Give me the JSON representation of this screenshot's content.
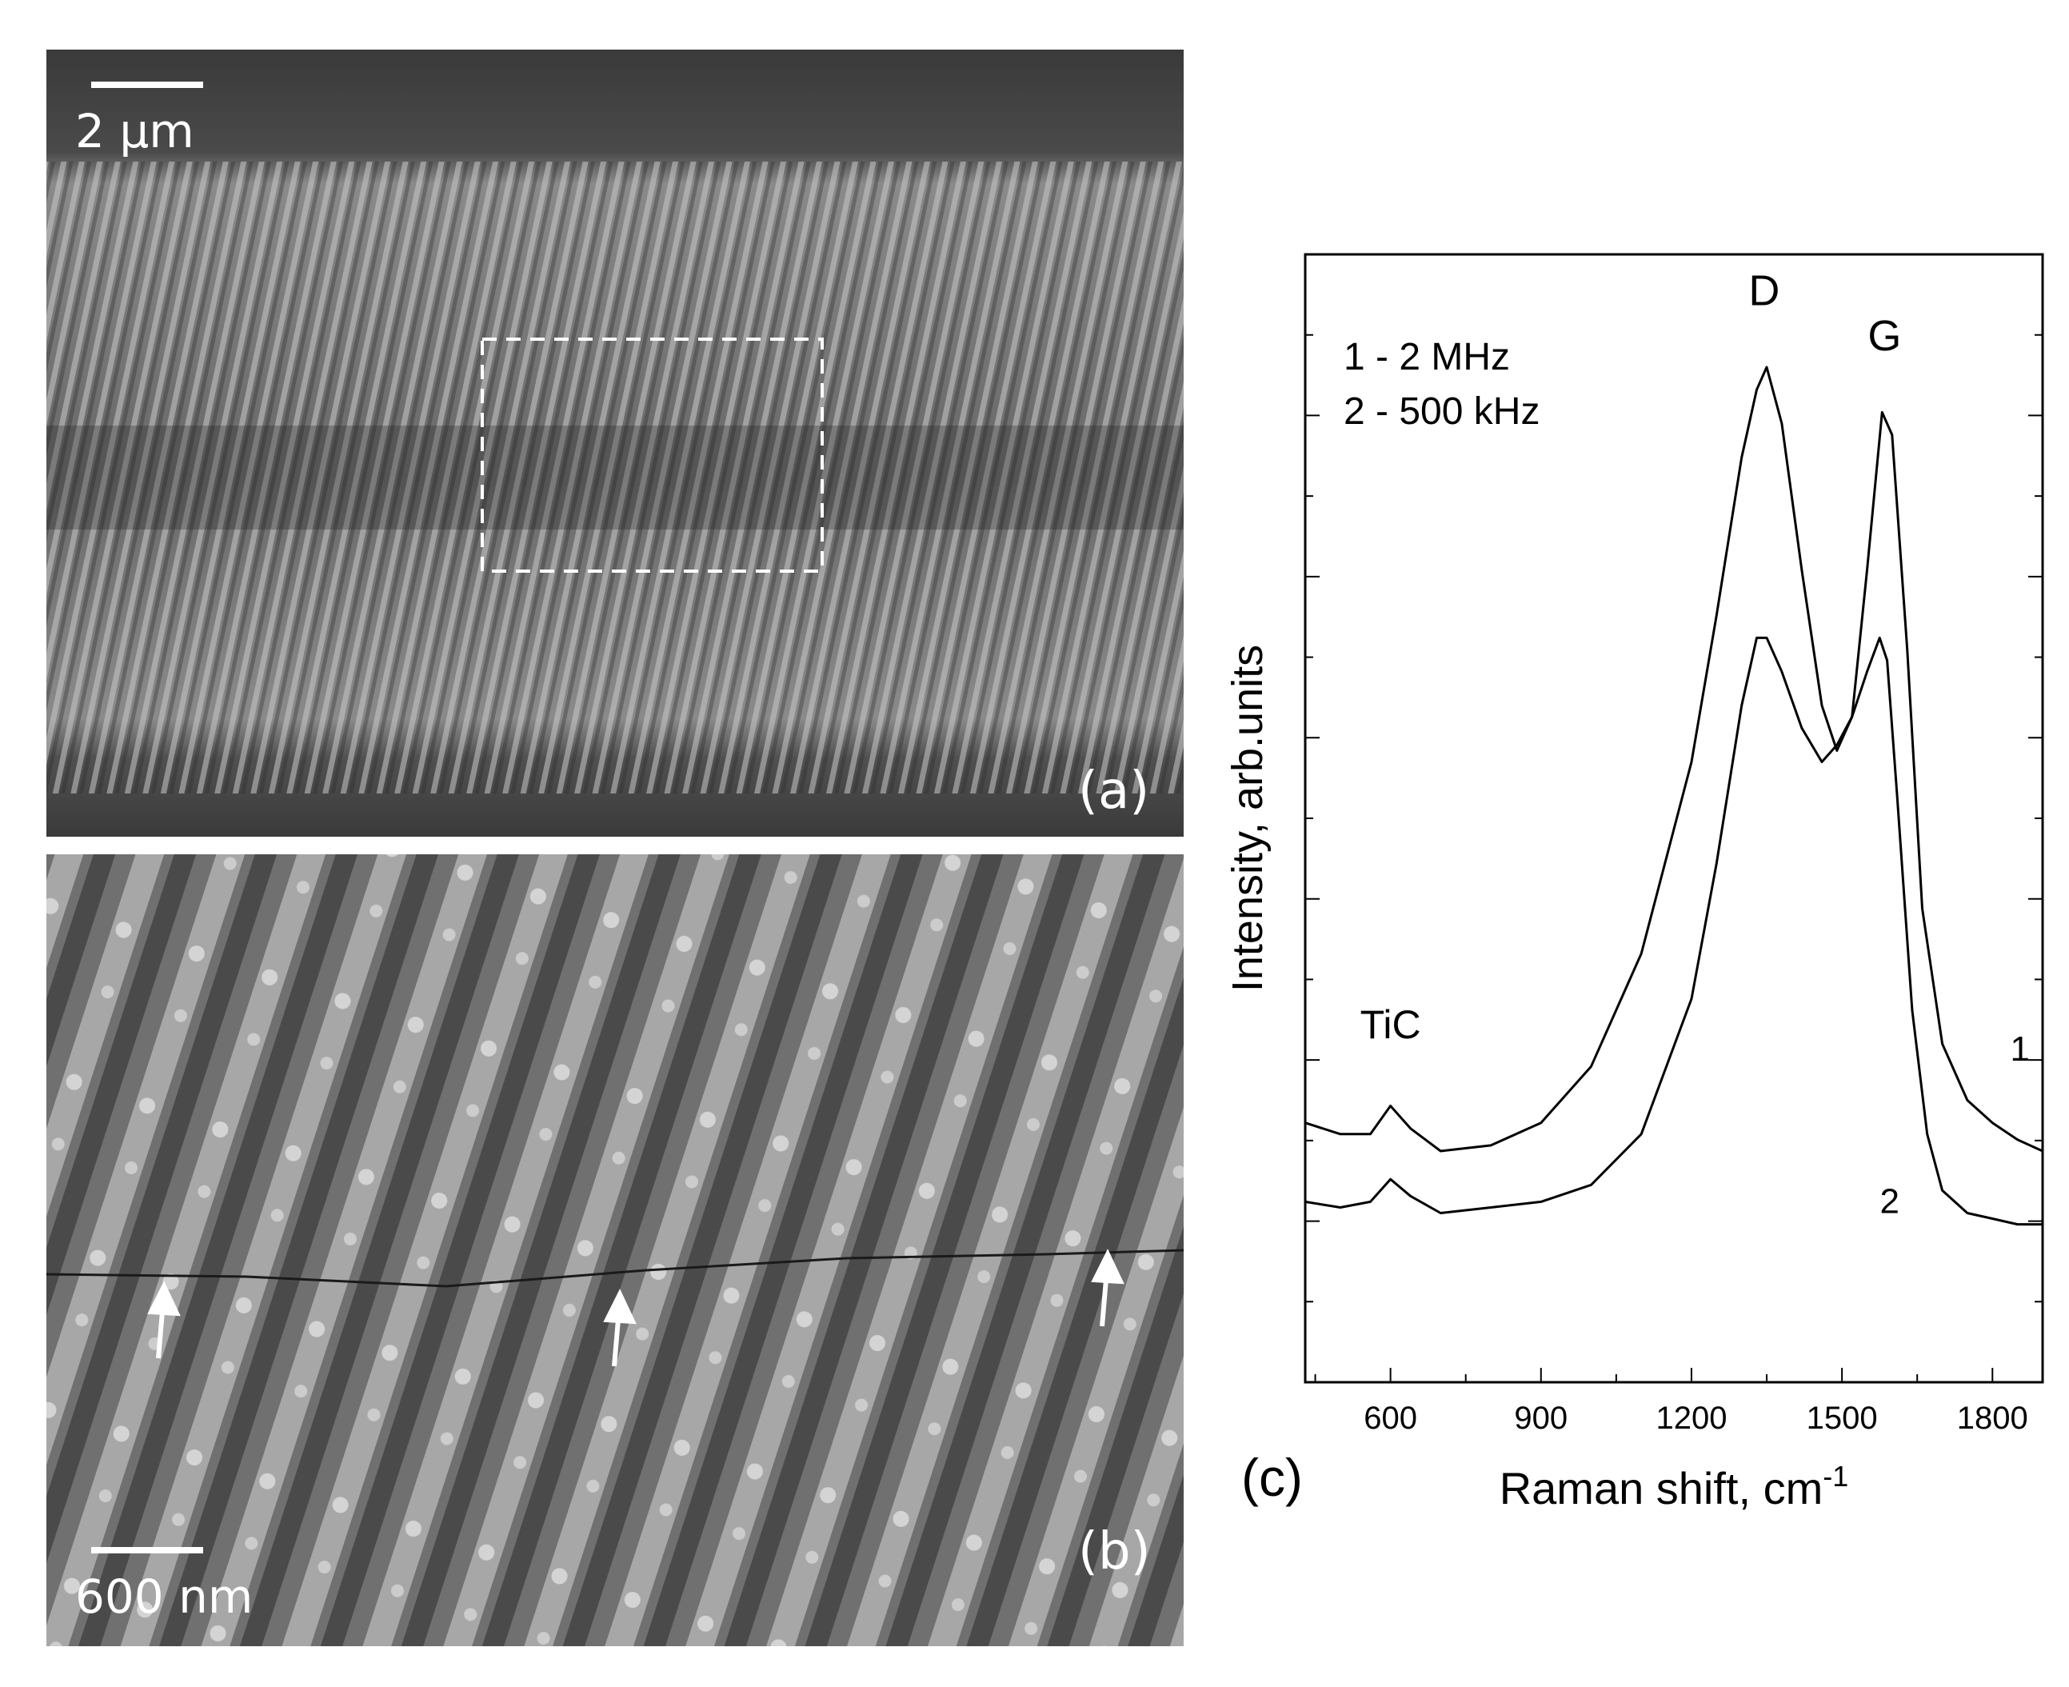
{
  "panel_a": {
    "scale_label": "2 μm",
    "panel_label": "(a)"
  },
  "panel_b": {
    "scale_label": "600 nm",
    "panel_label": "(b)"
  },
  "panel_c": {
    "panel_label": "(c)"
  },
  "chart_data": {
    "type": "line",
    "xlabel": "Raman shift, cm",
    "xlabel_superscript": "-1",
    "ylabel": "Intensity, arb.units",
    "xlim": [
      430,
      1900
    ],
    "ylim": [
      0,
      1
    ],
    "x_ticks": [
      600,
      900,
      1200,
      1500,
      1800
    ],
    "legend": [
      "1 - 2 MHz",
      "2 - 500 kHz"
    ],
    "annotations": [
      "TiC",
      "D",
      "G"
    ],
    "series": [
      {
        "name": "1",
        "x": [
          430,
          500,
          560,
          600,
          640,
          700,
          800,
          900,
          1000,
          1100,
          1200,
          1250,
          1300,
          1330,
          1350,
          1380,
          1420,
          1460,
          1490,
          1520,
          1550,
          1580,
          1600,
          1630,
          1660,
          1700,
          1750,
          1800,
          1850,
          1900
        ],
        "values": [
          0.23,
          0.22,
          0.22,
          0.245,
          0.225,
          0.205,
          0.21,
          0.23,
          0.28,
          0.38,
          0.55,
          0.68,
          0.82,
          0.88,
          0.9,
          0.85,
          0.72,
          0.6,
          0.56,
          0.59,
          0.72,
          0.86,
          0.84,
          0.65,
          0.42,
          0.3,
          0.25,
          0.23,
          0.215,
          0.205
        ]
      },
      {
        "name": "2",
        "x": [
          430,
          500,
          560,
          600,
          640,
          700,
          800,
          900,
          1000,
          1100,
          1200,
          1250,
          1300,
          1330,
          1350,
          1380,
          1420,
          1460,
          1490,
          1520,
          1550,
          1575,
          1590,
          1610,
          1640,
          1670,
          1700,
          1750,
          1800,
          1850,
          1900
        ],
        "values": [
          0.16,
          0.155,
          0.16,
          0.18,
          0.165,
          0.15,
          0.155,
          0.16,
          0.175,
          0.22,
          0.34,
          0.46,
          0.6,
          0.66,
          0.66,
          0.63,
          0.58,
          0.55,
          0.565,
          0.59,
          0.63,
          0.66,
          0.64,
          0.52,
          0.33,
          0.22,
          0.17,
          0.15,
          0.145,
          0.14,
          0.14
        ]
      }
    ],
    "curve_labels": [
      "1",
      "2"
    ],
    "grid": false
  }
}
